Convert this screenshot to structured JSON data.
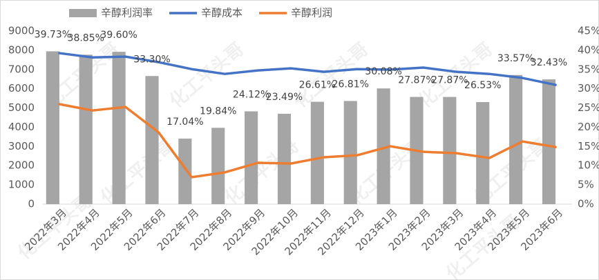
{
  "chart_data": {
    "type": "combo",
    "watermark": "化工平头哥",
    "categories": [
      "2022年3月",
      "2022年4月",
      "2022年5月",
      "2022年6月",
      "2022年7月",
      "2022年8月",
      "2022年9月",
      "2022年10月",
      "2022年11月",
      "2022年12月",
      "2023年1月",
      "2023年2月",
      "2023年3月",
      "2023年4月",
      "2023年5月",
      "2023年6月"
    ],
    "series": [
      {
        "name": "辛醇利润率",
        "type": "bar",
        "axis": "y2",
        "color": "#a5a5a5",
        "values": [
          39.73,
          38.85,
          39.6,
          33.3,
          17.04,
          19.84,
          24.12,
          23.49,
          26.61,
          26.81,
          30.08,
          27.87,
          27.87,
          26.53,
          33.57,
          32.43
        ],
        "value_labels": [
          "39.73%",
          "38.85%",
          "39.60%",
          "33.30%",
          "17.04%",
          "19.84%",
          "24.12%",
          "23.49%",
          "26.61%",
          "26.81%",
          "30.08%",
          "27.87%",
          "27.87%",
          "26.53%",
          "33.57%",
          "32.43%"
        ]
      },
      {
        "name": "辛醇成本",
        "type": "line",
        "color": "#4472c4",
        "values": [
          7850,
          7630,
          7670,
          7380,
          7020,
          6770,
          6950,
          7060,
          6880,
          7020,
          6990,
          7100,
          6880,
          6770,
          6560,
          6200
        ]
      },
      {
        "name": "辛醇利润",
        "type": "line",
        "color": "#ed7d31",
        "values": [
          5200,
          4870,
          5050,
          3730,
          1400,
          1650,
          2150,
          2110,
          2440,
          2540,
          3010,
          2720,
          2650,
          2400,
          3260,
          2970
        ]
      }
    ],
    "ylim": [
      0,
      9000
    ],
    "yticks": [
      0,
      1000,
      2000,
      3000,
      4000,
      5000,
      6000,
      7000,
      8000,
      9000
    ],
    "y2lim": [
      0,
      45
    ],
    "y2ticks": [
      {
        "value": 0,
        "label": "0%"
      },
      {
        "value": 5,
        "label": "5%"
      },
      {
        "value": 10,
        "label": "10%"
      },
      {
        "value": 15,
        "label": "15%"
      },
      {
        "value": 20,
        "label": "20%"
      },
      {
        "value": 25,
        "label": "25%"
      },
      {
        "value": 30,
        "label": "30%"
      },
      {
        "value": 35,
        "label": "35%"
      },
      {
        "value": 40,
        "label": "40%"
      },
      {
        "value": 45,
        "label": "45%"
      }
    ],
    "grid": false
  }
}
